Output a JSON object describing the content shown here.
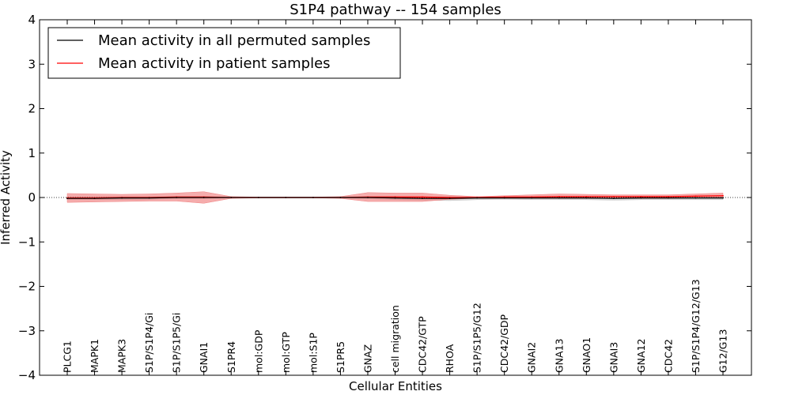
{
  "chart_data": {
    "type": "line",
    "title": "S1P4 pathway -- 154 samples",
    "xlabel": "Cellular Entities",
    "ylabel": "Inferred Activity",
    "ylim": [
      -4,
      4
    ],
    "yticks": [
      4,
      3,
      2,
      1,
      0,
      -1,
      -2,
      -3,
      -4
    ],
    "ytick_labels": [
      "4",
      "3",
      "2",
      "1",
      "0",
      "−1",
      "−2",
      "−3",
      "−4"
    ],
    "legend_position": "top-left",
    "categories": [
      "PLCG1",
      "MAPK1",
      "MAPK3",
      "S1P/S1P4/Gi",
      "S1P/S1P5/Gi",
      "GNAI1",
      "S1PR4",
      "mol:GDP",
      "mol:GTP",
      "mol:S1P",
      "S1PR5",
      "GNAZ",
      "cell migration",
      "CDC42/GTP",
      "RHOA",
      "S1P/S1P5/G12",
      "CDC42/GDP",
      "GNAI2",
      "GNA13",
      "GNAO1",
      "GNAI3",
      "GNA12",
      "CDC42",
      "S1P/S1P4/G12/G13",
      "G12/G13"
    ],
    "series": [
      {
        "name": "Mean activity in all permuted samples",
        "color": "#000000",
        "band_color": "#bfbfbf",
        "values": [
          -0.02,
          -0.02,
          -0.01,
          -0.01,
          0.0,
          0.0,
          0.0,
          0.0,
          0.0,
          0.0,
          0.0,
          0.0,
          -0.01,
          -0.02,
          -0.02,
          -0.01,
          -0.01,
          -0.01,
          -0.01,
          -0.01,
          -0.02,
          -0.01,
          -0.01,
          -0.01,
          -0.01
        ],
        "band_low": [
          -0.05,
          -0.05,
          -0.05,
          -0.04,
          -0.03,
          -0.03,
          -0.01,
          -0.01,
          -0.01,
          -0.01,
          -0.01,
          -0.03,
          -0.05,
          -0.06,
          -0.07,
          -0.05,
          -0.04,
          -0.05,
          -0.05,
          -0.05,
          -0.06,
          -0.05,
          -0.05,
          -0.05,
          -0.05
        ],
        "band_high": [
          0.02,
          0.02,
          0.02,
          0.02,
          0.02,
          0.02,
          0.01,
          0.01,
          0.01,
          0.01,
          0.01,
          0.02,
          0.03,
          0.02,
          0.02,
          0.02,
          0.02,
          0.02,
          0.02,
          0.02,
          0.02,
          0.03,
          0.03,
          0.03,
          0.03
        ]
      },
      {
        "name": "Mean activity in patient samples",
        "color": "#ff0000",
        "band_color": "#f08080",
        "values": [
          -0.01,
          -0.01,
          0.0,
          0.0,
          0.01,
          0.01,
          0.0,
          0.0,
          0.0,
          0.0,
          0.0,
          0.01,
          0.01,
          0.01,
          0.0,
          0.0,
          0.01,
          0.01,
          0.02,
          0.02,
          0.02,
          0.02,
          0.02,
          0.03,
          0.04
        ],
        "band_low": [
          -0.11,
          -0.1,
          -0.09,
          -0.08,
          -0.08,
          -0.13,
          -0.02,
          -0.01,
          -0.01,
          -0.01,
          -0.02,
          -0.09,
          -0.09,
          -0.09,
          -0.04,
          -0.02,
          -0.02,
          -0.02,
          -0.02,
          -0.02,
          -0.02,
          -0.02,
          -0.02,
          -0.01,
          0.0
        ],
        "band_high": [
          0.09,
          0.08,
          0.07,
          0.08,
          0.1,
          0.13,
          0.02,
          0.01,
          0.01,
          0.01,
          0.02,
          0.11,
          0.1,
          0.1,
          0.05,
          0.02,
          0.04,
          0.06,
          0.08,
          0.07,
          0.06,
          0.06,
          0.06,
          0.08,
          0.1
        ]
      }
    ]
  }
}
